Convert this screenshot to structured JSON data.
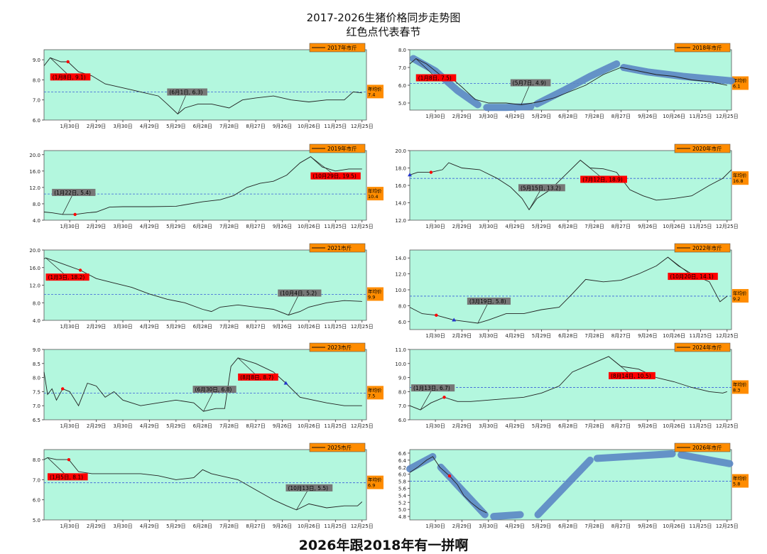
{
  "title": "2017-2026生猪价格同步走势图",
  "subtitle": "红色点代表春节",
  "caption": "2026年跟2018年有一拼啊",
  "colors": {
    "plot_bg": "#b3f7de",
    "line": "#222222",
    "mean_line": "#3a5fd8",
    "legend_bg": "#ff8c00",
    "max_label": "#ff0000",
    "min_label": "#777777",
    "spring": "#ff0000",
    "overlay": "#5b86c4"
  },
  "x_tick_labels": [
    "1月30日",
    "2月29日",
    "3月30日",
    "4月29日",
    "5月29日",
    "6月28日",
    "7月28日",
    "8月27日",
    "9月26日",
    "10月26日",
    "11月25日",
    "12月25日"
  ],
  "mean_label": "年均价",
  "chart_data": [
    {
      "type": "line",
      "legend": "2017年市斤",
      "ylim": [
        6.0,
        9.5
      ],
      "yticks": [
        6.0,
        7.0,
        8.0,
        9.0
      ],
      "mean": 7.4,
      "mean_text": "7.4",
      "max_label": "(1月8日, 9.1)",
      "max_point": [
        8,
        9.1
      ],
      "min_label": "(6月1日, 6.3)",
      "min_point": [
        152,
        6.3
      ],
      "spring_point": [
        28,
        8.9
      ],
      "blue_point": null,
      "x": [
        1,
        8,
        20,
        28,
        40,
        55,
        70,
        90,
        110,
        130,
        140,
        152,
        160,
        175,
        190,
        210,
        225,
        240,
        260,
        280,
        300,
        320,
        340,
        350,
        360
      ],
      "y": [
        8.7,
        9.1,
        8.9,
        8.9,
        8.4,
        8.2,
        7.8,
        7.6,
        7.4,
        7.2,
        6.8,
        6.3,
        6.6,
        6.8,
        6.8,
        6.6,
        7.0,
        7.1,
        7.2,
        7.0,
        6.9,
        7.0,
        7.0,
        7.4,
        7.35
      ]
    },
    {
      "type": "line",
      "legend": "2018年市斤",
      "ylim": [
        4.6,
        8.0
      ],
      "yticks": [
        5.0,
        6.0,
        7.0,
        8.0
      ],
      "mean": 6.1,
      "mean_text": "6.1",
      "max_label": "(1月8日, 7.5)",
      "max_point": [
        8,
        7.5
      ],
      "min_label": "(5月7日, 4.9)",
      "min_point": [
        127,
        4.9
      ],
      "spring_point": [
        46,
        6.5
      ],
      "blue_point": null,
      "x": [
        1,
        8,
        20,
        35,
        46,
        60,
        75,
        90,
        110,
        127,
        140,
        150,
        165,
        180,
        200,
        220,
        240,
        260,
        280,
        300,
        320,
        340,
        360
      ],
      "y": [
        7.2,
        7.5,
        7.2,
        6.6,
        6.5,
        5.9,
        5.2,
        5.0,
        5.0,
        4.9,
        5.0,
        5.1,
        5.3,
        5.6,
        6.0,
        6.6,
        7.0,
        6.8,
        6.6,
        6.5,
        6.3,
        6.2,
        6.0
      ],
      "overlay": [
        [
          [
            5,
            7.5
          ],
          [
            30,
            6.8
          ],
          [
            55,
            5.7
          ],
          [
            78,
            4.9
          ]
        ],
        [
          [
            88,
            4.75
          ],
          [
            110,
            4.75
          ],
          [
            138,
            4.8
          ]
        ],
        [
          [
            145,
            4.95
          ],
          [
            175,
            5.7
          ],
          [
            205,
            6.5
          ],
          [
            235,
            7.2
          ]
        ],
        [
          [
            243,
            7.0
          ],
          [
            270,
            6.75
          ],
          [
            310,
            6.5
          ],
          [
            365,
            6.25
          ]
        ]
      ]
    },
    {
      "type": "line",
      "legend": "2019年市斤",
      "ylim": [
        4.0,
        21.0
      ],
      "yticks": [
        4.0,
        8.0,
        12.0,
        16.0,
        20.0
      ],
      "mean": 10.4,
      "mean_text": "10.4",
      "max_label": "(10月29日, 19.5)",
      "max_point": [
        302,
        19.5
      ],
      "min_label": "(1月22日, 5.4)",
      "min_point": [
        22,
        5.4
      ],
      "spring_point": [
        36,
        5.4
      ],
      "blue_point": null,
      "x": [
        1,
        10,
        22,
        36,
        50,
        60,
        75,
        90,
        120,
        150,
        180,
        200,
        215,
        230,
        245,
        260,
        275,
        290,
        302,
        315,
        330,
        345,
        360
      ],
      "y": [
        6.0,
        5.8,
        5.4,
        5.4,
        5.8,
        6.0,
        7.2,
        7.3,
        7.3,
        7.4,
        8.5,
        9.0,
        10.0,
        12.0,
        13.0,
        13.5,
        15.0,
        18.0,
        19.5,
        17.0,
        16.0,
        16.5,
        16.5
      ]
    },
    {
      "type": "line",
      "legend": "2020年市斤",
      "ylim": [
        12.0,
        20.0
      ],
      "yticks": [
        12.0,
        14.0,
        16.0,
        18.0,
        20.0
      ],
      "mean": 16.8,
      "mean_text": "16.8",
      "max_label": "(7月12日, 18.9)",
      "max_point": [
        194,
        18.9
      ],
      "min_label": "(5月15日, 13.2)",
      "min_point": [
        136,
        13.2
      ],
      "spring_point": [
        25,
        17.5
      ],
      "blue_point": [
        1,
        17.2
      ],
      "x": [
        1,
        10,
        25,
        38,
        45,
        60,
        80,
        100,
        115,
        128,
        136,
        145,
        160,
        175,
        194,
        205,
        220,
        235,
        250,
        265,
        280,
        300,
        320,
        340,
        355,
        365
      ],
      "y": [
        17.2,
        17.5,
        17.5,
        17.8,
        18.6,
        18.0,
        17.8,
        16.8,
        15.8,
        14.5,
        13.2,
        14.5,
        15.5,
        17.0,
        18.9,
        18.0,
        17.9,
        17.5,
        15.5,
        14.8,
        14.3,
        14.5,
        14.8,
        16.0,
        16.8,
        17.8
      ]
    },
    {
      "type": "line",
      "legend": "2021市斤",
      "ylim": [
        4.0,
        20.0
      ],
      "yticks": [
        4.0,
        8.0,
        12.0,
        16.0,
        20.0
      ],
      "mean": 9.9,
      "mean_text": "9.9",
      "max_label": "(1月3日, 18.2)",
      "max_point": [
        3,
        18.2
      ],
      "min_label": "(10月4日, 5.2)",
      "min_point": [
        277,
        5.2
      ],
      "spring_point": [
        42,
        15.4
      ],
      "blue_point": null,
      "x": [
        1,
        3,
        20,
        42,
        60,
        80,
        100,
        120,
        140,
        160,
        180,
        190,
        200,
        220,
        240,
        260,
        277,
        290,
        300,
        320,
        340,
        360
      ],
      "y": [
        18.0,
        18.2,
        17.0,
        15.4,
        13.5,
        12.5,
        11.5,
        10.0,
        8.8,
        8.0,
        6.5,
        6.0,
        7.0,
        7.5,
        7.0,
        6.5,
        5.2,
        6.0,
        7.0,
        8.0,
        8.5,
        8.3
      ]
    },
    {
      "type": "line",
      "legend": "2022年市斤",
      "ylim": [
        5.0,
        15.0
      ],
      "yticks": [
        6.0,
        8.0,
        10.0,
        12.0,
        14.0
      ],
      "mean": 9.2,
      "mean_text": "9.2",
      "max_label": "(10月20日, 14.1)",
      "max_point": [
        293,
        14.1
      ],
      "min_label": "(3月19日, 5.8)",
      "min_point": [
        78,
        5.8
      ],
      "spring_point": [
        31,
        6.8
      ],
      "blue_point": [
        51,
        6.2
      ],
      "x": [
        1,
        15,
        31,
        51,
        65,
        78,
        90,
        110,
        130,
        150,
        170,
        185,
        200,
        220,
        240,
        260,
        280,
        293,
        305,
        320,
        340,
        352,
        360
      ],
      "y": [
        7.8,
        7.0,
        6.8,
        6.2,
        6.0,
        5.8,
        6.2,
        7.0,
        7.0,
        7.5,
        7.8,
        9.5,
        11.3,
        11.0,
        11.2,
        12.0,
        13.0,
        14.1,
        13.0,
        12.0,
        11.0,
        8.5,
        9.2
      ]
    },
    {
      "type": "line",
      "legend": "2023市斤",
      "ylim": [
        6.5,
        9.0
      ],
      "yticks": [
        6.5,
        7.0,
        7.5,
        8.0,
        8.5,
        9.0
      ],
      "mean": 7.45,
      "mean_text": "7.5",
      "max_label": "(8月8日, 8.7)",
      "max_point": [
        220,
        8.7
      ],
      "min_label": "(6月30日, 6.8)",
      "min_point": [
        181,
        6.8
      ],
      "spring_point": [
        22,
        7.6
      ],
      "blue_point": [
        274,
        7.8
      ],
      "x": [
        1,
        5,
        10,
        15,
        22,
        30,
        40,
        50,
        60,
        70,
        80,
        90,
        110,
        130,
        150,
        170,
        181,
        195,
        205,
        212,
        220,
        240,
        260,
        274,
        290,
        305,
        320,
        340,
        360
      ],
      "y": [
        8.2,
        7.4,
        7.6,
        7.2,
        7.6,
        7.5,
        7.0,
        7.8,
        7.7,
        7.3,
        7.5,
        7.2,
        7.0,
        7.1,
        7.2,
        7.1,
        6.8,
        6.9,
        6.9,
        8.4,
        8.7,
        8.5,
        8.2,
        7.8,
        7.3,
        7.2,
        7.1,
        7.0,
        7.0
      ]
    },
    {
      "type": "line",
      "legend": "2024年市斤",
      "ylim": [
        6.0,
        11.0
      ],
      "yticks": [
        6.0,
        7.0,
        8.0,
        9.0,
        10.0,
        11.0
      ],
      "mean": 8.3,
      "mean_text": "8.3",
      "max_label": "(8月14日, 10.5)",
      "max_point": [
        226,
        10.5
      ],
      "min_label": "(1月13日, 6.7)",
      "min_point": [
        13,
        6.7
      ],
      "spring_point": [
        40,
        7.6
      ],
      "blue_point": null,
      "x": [
        1,
        13,
        25,
        40,
        55,
        70,
        90,
        110,
        130,
        150,
        170,
        185,
        200,
        215,
        226,
        240,
        260,
        280,
        300,
        320,
        340,
        355,
        360
      ],
      "y": [
        7.0,
        6.7,
        7.2,
        7.6,
        7.3,
        7.3,
        7.4,
        7.5,
        7.6,
        7.9,
        8.4,
        9.4,
        9.8,
        10.2,
        10.5,
        9.8,
        9.6,
        9.0,
        8.7,
        8.3,
        8.0,
        7.9,
        8.0
      ]
    },
    {
      "type": "line",
      "legend": "2025市斤",
      "ylim": [
        5.0,
        8.5
      ],
      "yticks": [
        5.0,
        6.0,
        7.0,
        8.0
      ],
      "mean": 6.85,
      "mean_text": "6.9",
      "max_label": "(1月5日, 8.1)",
      "max_point": [
        5,
        8.1
      ],
      "min_label": "(10月13日, 5.5)",
      "min_point": [
        286,
        5.5
      ],
      "spring_point": [
        29,
        8.0
      ],
      "blue_point": null,
      "x": [
        1,
        5,
        15,
        29,
        40,
        55,
        70,
        90,
        110,
        130,
        150,
        170,
        180,
        190,
        200,
        220,
        240,
        260,
        275,
        286,
        300,
        320,
        340,
        355,
        360
      ],
      "y": [
        8.0,
        8.1,
        8.0,
        8.0,
        7.4,
        7.3,
        7.3,
        7.3,
        7.3,
        7.2,
        7.0,
        7.1,
        7.5,
        7.3,
        7.2,
        7.0,
        6.5,
        6.0,
        5.7,
        5.5,
        5.8,
        5.6,
        5.7,
        5.7,
        5.9
      ],
      "overlay": []
    },
    {
      "type": "line",
      "legend": "2026年市斤",
      "ylim": [
        4.7,
        6.7
      ],
      "yticks": [
        4.8,
        5.0,
        5.2,
        5.4,
        5.6,
        5.8,
        6.0,
        6.2,
        6.4,
        6.6
      ],
      "mean": 5.8,
      "mean_text": "5.8",
      "max_label": "",
      "max_point": null,
      "min_label": "",
      "min_point": null,
      "spring_point": [
        46,
        5.95
      ],
      "blue_point": null,
      "x": [
        1,
        10,
        20,
        27,
        35,
        46,
        55,
        62,
        70,
        80,
        88
      ],
      "y": [
        6.05,
        6.2,
        6.4,
        6.5,
        6.2,
        5.95,
        5.7,
        5.4,
        5.2,
        5.0,
        4.9
      ],
      "overlay": [
        [
          [
            1,
            6.15
          ],
          [
            27,
            6.5
          ]
        ],
        [
          [
            36,
            6.2
          ],
          [
            86,
            4.85
          ]
        ],
        [
          [
            96,
            4.8
          ],
          [
            126,
            4.85
          ]
        ],
        [
          [
            146,
            4.85
          ],
          [
            205,
            6.4
          ]
        ],
        [
          [
            213,
            6.45
          ],
          [
            298,
            6.58
          ]
        ],
        [
          [
            308,
            6.55
          ],
          [
            363,
            6.3
          ]
        ]
      ]
    }
  ]
}
